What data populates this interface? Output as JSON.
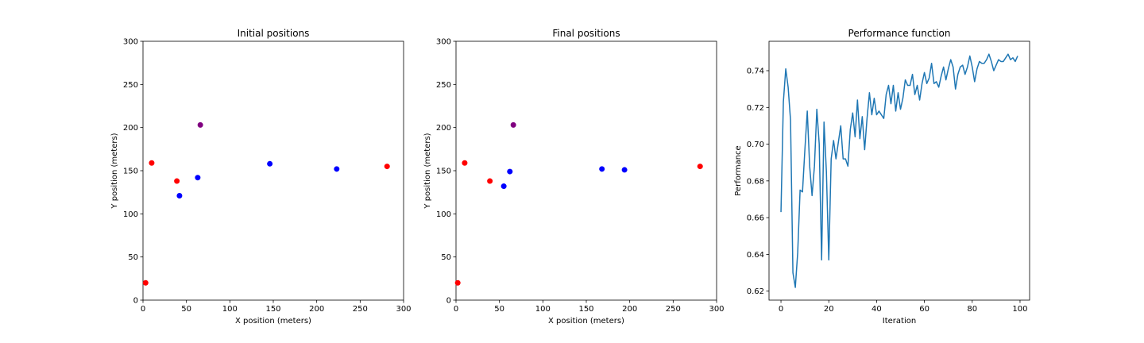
{
  "chart_data": [
    {
      "type": "scatter",
      "title": "Initial positions",
      "xlabel": "X position (meters)",
      "ylabel": "Y position (meters)",
      "xlim": [
        0,
        300
      ],
      "ylim": [
        0,
        300
      ],
      "xticks": [
        0,
        50,
        100,
        150,
        200,
        250,
        300
      ],
      "yticks": [
        0,
        50,
        100,
        150,
        200,
        250,
        300
      ],
      "grid": false,
      "points": [
        {
          "x": 10,
          "y": 159,
          "color": "#ff0000"
        },
        {
          "x": 39,
          "y": 138,
          "color": "#ff0000"
        },
        {
          "x": 3,
          "y": 20,
          "color": "#ff0000"
        },
        {
          "x": 281,
          "y": 155,
          "color": "#ff0000"
        },
        {
          "x": 42,
          "y": 121,
          "color": "#0000ff"
        },
        {
          "x": 63,
          "y": 142,
          "color": "#0000ff"
        },
        {
          "x": 146,
          "y": 158,
          "color": "#0000ff"
        },
        {
          "x": 223,
          "y": 152,
          "color": "#0000ff"
        },
        {
          "x": 66,
          "y": 203,
          "color": "#800080"
        }
      ]
    },
    {
      "type": "scatter",
      "title": "Final positions",
      "xlabel": "X position (meters)",
      "ylabel": "Y position (meters)",
      "xlim": [
        0,
        300
      ],
      "ylim": [
        0,
        300
      ],
      "xticks": [
        0,
        50,
        100,
        150,
        200,
        250,
        300
      ],
      "yticks": [
        0,
        50,
        100,
        150,
        200,
        250,
        300
      ],
      "grid": false,
      "points": [
        {
          "x": 10,
          "y": 159,
          "color": "#ff0000"
        },
        {
          "x": 39,
          "y": 138,
          "color": "#ff0000"
        },
        {
          "x": 2,
          "y": 20,
          "color": "#ff0000"
        },
        {
          "x": 281,
          "y": 155,
          "color": "#ff0000"
        },
        {
          "x": 55,
          "y": 132,
          "color": "#0000ff"
        },
        {
          "x": 62,
          "y": 149,
          "color": "#0000ff"
        },
        {
          "x": 168,
          "y": 152,
          "color": "#0000ff"
        },
        {
          "x": 194,
          "y": 151,
          "color": "#0000ff"
        },
        {
          "x": 66,
          "y": 203,
          "color": "#800080"
        }
      ]
    },
    {
      "type": "line",
      "title": "Performance function",
      "xlabel": "Iteration",
      "ylabel": "Performance",
      "xlim": [
        -5,
        104
      ],
      "ylim": [
        0.6151,
        0.756
      ],
      "xticks": [
        0,
        20,
        40,
        60,
        80,
        100
      ],
      "yticks": [
        0.62,
        0.64,
        0.66,
        0.68,
        0.7,
        0.72,
        0.74
      ],
      "ytick_labels": [
        "0.62",
        "0.64",
        "0.66",
        "0.68",
        "0.70",
        "0.72",
        "0.74"
      ],
      "grid": false,
      "series": [
        {
          "color": "#1f77b4",
          "x": [
            0,
            1,
            2,
            3,
            4,
            5,
            6,
            7,
            8,
            9,
            10,
            11,
            12,
            13,
            14,
            15,
            16,
            17,
            18,
            19,
            20,
            21,
            22,
            23,
            24,
            25,
            26,
            27,
            28,
            29,
            30,
            31,
            32,
            33,
            34,
            35,
            36,
            37,
            38,
            39,
            40,
            41,
            42,
            43,
            44,
            45,
            46,
            47,
            48,
            49,
            50,
            51,
            52,
            53,
            54,
            55,
            56,
            57,
            58,
            59,
            60,
            61,
            62,
            63,
            64,
            65,
            66,
            67,
            68,
            69,
            70,
            71,
            72,
            73,
            74,
            75,
            76,
            77,
            78,
            79,
            80,
            81,
            82,
            83,
            84,
            85,
            86,
            87,
            88,
            89,
            90,
            91,
            92,
            93,
            94,
            95,
            96,
            97,
            98,
            99
          ],
          "values": [
            0.663,
            0.723,
            0.741,
            0.731,
            0.713,
            0.63,
            0.622,
            0.641,
            0.675,
            0.674,
            0.697,
            0.718,
            0.688,
            0.672,
            0.688,
            0.719,
            0.7,
            0.637,
            0.712,
            0.685,
            0.637,
            0.692,
            0.702,
            0.692,
            0.701,
            0.71,
            0.692,
            0.692,
            0.688,
            0.708,
            0.717,
            0.704,
            0.724,
            0.703,
            0.715,
            0.697,
            0.714,
            0.728,
            0.716,
            0.725,
            0.716,
            0.718,
            0.716,
            0.714,
            0.727,
            0.732,
            0.722,
            0.732,
            0.718,
            0.728,
            0.719,
            0.725,
            0.735,
            0.732,
            0.732,
            0.738,
            0.727,
            0.732,
            0.724,
            0.733,
            0.739,
            0.733,
            0.736,
            0.744,
            0.733,
            0.734,
            0.731,
            0.737,
            0.742,
            0.735,
            0.741,
            0.746,
            0.742,
            0.73,
            0.738,
            0.742,
            0.743,
            0.738,
            0.742,
            0.748,
            0.742,
            0.734,
            0.741,
            0.745,
            0.744,
            0.744,
            0.746,
            0.749,
            0.745,
            0.74,
            0.743,
            0.746,
            0.745,
            0.745,
            0.747,
            0.749,
            0.746,
            0.747,
            0.745,
            0.748
          ]
        }
      ]
    }
  ]
}
